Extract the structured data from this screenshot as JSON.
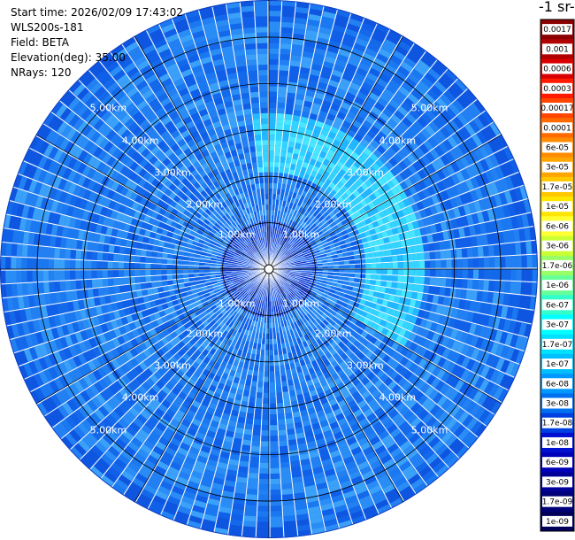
{
  "header": {
    "start_time": "Start time: 2026/02/09 17:43:02",
    "instrument": "WLS200s-181",
    "field": "Field: BETA",
    "elevation": "Elevation(deg): 35.00",
    "nrays": "NRays: 120"
  },
  "colorbar": {
    "unit_label": "-1 sr-",
    "ticks": [
      "0.0017",
      "0.001",
      "0.0006",
      "0.0003",
      "0.00017",
      "0.0001",
      "6e-05",
      "3e-05",
      "1.7e-05",
      "1e-05",
      "6e-06",
      "3e-06",
      "1.7e-06",
      "1e-06",
      "6e-07",
      "3e-07",
      "1.7e-07",
      "1e-07",
      "6e-08",
      "3e-08",
      "1.7e-08",
      "1e-08",
      "6e-09",
      "3e-09",
      "1.7e-09",
      "1e-09"
    ],
    "colors": [
      "#8b0000",
      "#b00000",
      "#d80000",
      "#ff1a00",
      "#ff4500",
      "#ff6a00",
      "#ff8c00",
      "#ffa500",
      "#ffc800",
      "#ffe600",
      "#ffff33",
      "#ccff33",
      "#99ff66",
      "#66ff99",
      "#33ffcc",
      "#00ffff",
      "#00e0ff",
      "#00bfff",
      "#0099ff",
      "#0070f0",
      "#0040e0",
      "#0010d0",
      "#0000b8",
      "#000098",
      "#000078",
      "#000058"
    ]
  },
  "chart_data": {
    "type": "heatmap",
    "title": "",
    "projection": "polar (PPI)",
    "field": "BETA",
    "elevation_deg": 35.0,
    "n_rays": 120,
    "range_ring_labels": [
      "1.00km",
      "2.00km",
      "3.00km",
      "4.00km",
      "5.00km"
    ],
    "range_rings_km": [
      1,
      2,
      3,
      4,
      5
    ],
    "max_range_km": 5.8,
    "color_scale": "log",
    "value_range": [
      1e-09,
      0.0017
    ],
    "dominant_value_range": [
      1e-08,
      1.7e-07
    ],
    "feature": "enhanced backscatter arc (~1e-07) at about 2.3-3.3 km range toward the east/northeast"
  }
}
